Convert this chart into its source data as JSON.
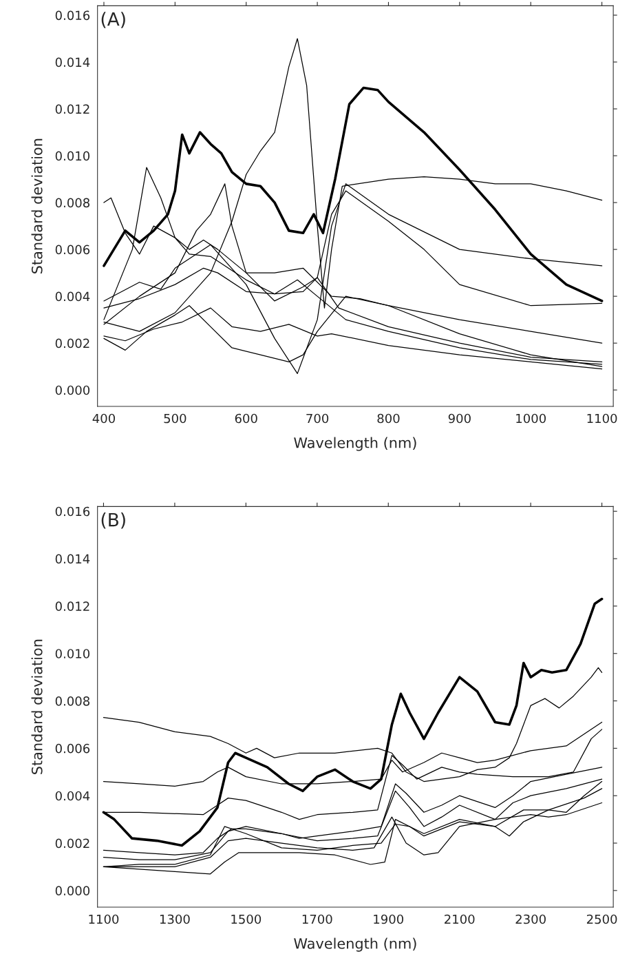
{
  "chart_data": [
    {
      "type": "line",
      "annotations": [
        "(A)"
      ],
      "xlabel": "Wavelength (nm)",
      "ylabel": "Standard deviation",
      "xlim": [
        391,
        1116
      ],
      "ylim": [
        -0.0007,
        0.0164
      ],
      "xticks": [
        400,
        500,
        600,
        700,
        800,
        900,
        1000,
        1100
      ],
      "yticks": [
        {
          "value": 0,
          "label": "0.000"
        },
        {
          "value": 0.002,
          "label": "0.002"
        },
        {
          "value": 0.004,
          "label": "0.004"
        },
        {
          "value": 0.006,
          "label": "0.006"
        },
        {
          "value": 0.008,
          "label": "0.008"
        },
        {
          "value": 0.01,
          "label": "0.010"
        },
        {
          "value": 0.012,
          "label": "0.012"
        },
        {
          "value": 0.014,
          "label": "0.014"
        },
        {
          "value": 0.016,
          "label": "0.016"
        }
      ],
      "grid": false,
      "series": [
        {
          "color": "#000000",
          "x": [
            400,
            410,
            430,
            450,
            470,
            490,
            500,
            510,
            520,
            535,
            550,
            565,
            580,
            600,
            620,
            640,
            660,
            680,
            695,
            708,
            725,
            745,
            765,
            785,
            800,
            850,
            900,
            950,
            1000,
            1050,
            1100
          ],
          "values": [
            0.0053,
            0.0058,
            0.0068,
            0.0063,
            0.0068,
            0.0075,
            0.0085,
            0.0109,
            0.0101,
            0.011,
            0.0105,
            0.0101,
            0.0093,
            0.0088,
            0.0087,
            0.008,
            0.0068,
            0.0067,
            0.0075,
            0.0067,
            0.009,
            0.0122,
            0.0129,
            0.0128,
            0.0123,
            0.011,
            0.0094,
            0.0077,
            0.0058,
            0.0045,
            0.0038
          ]
        },
        {
          "color": "#000000",
          "x": [
            400,
            450,
            500,
            550,
            580,
            600,
            620,
            640,
            660,
            672,
            685,
            700,
            710,
            720,
            735,
            800,
            850,
            900,
            950,
            1000,
            1050,
            1100
          ],
          "values": [
            0.0029,
            0.0025,
            0.0033,
            0.005,
            0.0072,
            0.0092,
            0.0102,
            0.011,
            0.0138,
            0.015,
            0.013,
            0.007,
            0.0035,
            0.006,
            0.0087,
            0.009,
            0.0091,
            0.009,
            0.0088,
            0.0088,
            0.0085,
            0.0081
          ]
        },
        {
          "color": "#000000",
          "x": [
            400,
            450,
            480,
            500,
            550,
            600,
            640,
            672,
            700,
            720,
            740,
            800,
            900,
            1000,
            1100
          ],
          "values": [
            0.0038,
            0.0046,
            0.0043,
            0.0052,
            0.0062,
            0.0045,
            0.0022,
            0.0007,
            0.003,
            0.007,
            0.0088,
            0.0075,
            0.006,
            0.0056,
            0.0053
          ]
        },
        {
          "color": "#000000",
          "x": [
            400,
            410,
            430,
            450,
            470,
            500,
            520,
            550,
            600,
            640,
            680,
            700,
            720,
            740,
            800,
            850,
            900,
            1000,
            1100
          ],
          "values": [
            0.008,
            0.0082,
            0.0067,
            0.0058,
            0.007,
            0.0065,
            0.0058,
            0.0057,
            0.0047,
            0.0041,
            0.0042,
            0.0048,
            0.0075,
            0.0085,
            0.0072,
            0.006,
            0.0045,
            0.0036,
            0.0037
          ]
        },
        {
          "color": "#000000",
          "x": [
            400,
            440,
            460,
            480,
            500,
            520,
            540,
            560,
            600,
            640,
            680,
            720,
            760,
            800,
            900,
            1000,
            1100
          ],
          "values": [
            0.003,
            0.006,
            0.0095,
            0.0082,
            0.0065,
            0.006,
            0.0064,
            0.006,
            0.005,
            0.005,
            0.0052,
            0.004,
            0.0039,
            0.0036,
            0.003,
            0.0025,
            0.002
          ]
        },
        {
          "color": "#000000",
          "x": [
            400,
            450,
            500,
            530,
            550,
            570,
            580,
            600,
            640,
            680,
            700,
            730,
            800,
            900,
            1000,
            1100
          ],
          "values": [
            0.0028,
            0.004,
            0.005,
            0.0068,
            0.0075,
            0.0088,
            0.007,
            0.005,
            0.0038,
            0.0044,
            0.0048,
            0.0035,
            0.0027,
            0.002,
            0.0014,
            0.0012
          ]
        },
        {
          "color": "#000000",
          "x": [
            400,
            430,
            460,
            500,
            520,
            550,
            580,
            620,
            660,
            680,
            700,
            740,
            800,
            900,
            1000,
            1100
          ],
          "values": [
            0.0022,
            0.0017,
            0.0025,
            0.0032,
            0.0036,
            0.0027,
            0.0018,
            0.0015,
            0.0012,
            0.0015,
            0.0025,
            0.004,
            0.0036,
            0.0024,
            0.0015,
            0.001
          ]
        },
        {
          "color": "#000000",
          "x": [
            400,
            430,
            470,
            510,
            550,
            580,
            620,
            660,
            700,
            720,
            800,
            900,
            1000,
            1100
          ],
          "values": [
            0.0023,
            0.0021,
            0.0026,
            0.0029,
            0.0035,
            0.0027,
            0.0025,
            0.0028,
            0.0023,
            0.0024,
            0.0019,
            0.0015,
            0.0012,
            0.0009
          ]
        },
        {
          "color": "#000000",
          "x": [
            400,
            450,
            500,
            540,
            560,
            600,
            640,
            672,
            700,
            740,
            800,
            900,
            1000,
            1100
          ],
          "values": [
            0.0035,
            0.0039,
            0.0045,
            0.0052,
            0.005,
            0.0042,
            0.0041,
            0.0047,
            0.004,
            0.003,
            0.0025,
            0.0018,
            0.0013,
            0.0011
          ]
        }
      ]
    },
    {
      "type": "line",
      "annotations": [
        "(B)"
      ],
      "xlabel": "Wavelength (nm)",
      "ylabel": "Standard deviation",
      "xlim": [
        1083,
        2532
      ],
      "ylim": [
        -0.0007,
        0.0162
      ],
      "xticks": [
        1100,
        1300,
        1500,
        1700,
        1900,
        2100,
        2300,
        2500
      ],
      "yticks": [
        {
          "value": 0,
          "label": "0.000"
        },
        {
          "value": 0.002,
          "label": "0.002"
        },
        {
          "value": 0.004,
          "label": "0.004"
        },
        {
          "value": 0.006,
          "label": "0.006"
        },
        {
          "value": 0.008,
          "label": "0.008"
        },
        {
          "value": 0.01,
          "label": "0.010"
        },
        {
          "value": 0.012,
          "label": "0.012"
        },
        {
          "value": 0.014,
          "label": "0.014"
        },
        {
          "value": 0.016,
          "label": "0.016"
        }
      ],
      "grid": false,
      "series": [
        {
          "color": "#000000",
          "x": [
            1100,
            1130,
            1180,
            1250,
            1320,
            1370,
            1420,
            1450,
            1470,
            1500,
            1560,
            1620,
            1660,
            1700,
            1750,
            1800,
            1850,
            1880,
            1910,
            1935,
            1960,
            2000,
            2040,
            2100,
            2150,
            2200,
            2240,
            2260,
            2280,
            2300,
            2330,
            2360,
            2400,
            2440,
            2480,
            2500
          ],
          "values": [
            0.0033,
            0.003,
            0.0022,
            0.0021,
            0.0019,
            0.0025,
            0.0035,
            0.0054,
            0.0058,
            0.0056,
            0.0052,
            0.0045,
            0.0042,
            0.0048,
            0.0051,
            0.0046,
            0.0043,
            0.0047,
            0.007,
            0.0083,
            0.0075,
            0.0064,
            0.0075,
            0.009,
            0.0084,
            0.0071,
            0.007,
            0.0078,
            0.0096,
            0.009,
            0.0093,
            0.0092,
            0.0093,
            0.0104,
            0.0121,
            0.0123
          ]
        },
        {
          "color": "#000000",
          "x": [
            1100,
            1200,
            1300,
            1400,
            1450,
            1500,
            1530,
            1580,
            1650,
            1750,
            1870,
            1910,
            1950,
            2000,
            2050,
            2100,
            2150,
            2200,
            2240,
            2260,
            2280,
            2300,
            2340,
            2380,
            2420,
            2470,
            2490,
            2500
          ],
          "values": [
            0.0073,
            0.0071,
            0.0067,
            0.0065,
            0.0062,
            0.0058,
            0.006,
            0.0056,
            0.0058,
            0.0058,
            0.006,
            0.0058,
            0.005,
            0.0046,
            0.0047,
            0.0048,
            0.0051,
            0.0052,
            0.0056,
            0.0062,
            0.007,
            0.0078,
            0.0081,
            0.0077,
            0.0082,
            0.009,
            0.0094,
            0.0092
          ]
        },
        {
          "color": "#000000",
          "x": [
            1100,
            1200,
            1300,
            1380,
            1420,
            1450,
            1500,
            1600,
            1700,
            1800,
            1880,
            1910,
            1940,
            2000,
            2050,
            2100,
            2150,
            2200,
            2300,
            2400,
            2450,
            2500
          ],
          "values": [
            0.0046,
            0.0045,
            0.0044,
            0.0046,
            0.005,
            0.0052,
            0.0048,
            0.0045,
            0.0045,
            0.0046,
            0.0047,
            0.0055,
            0.005,
            0.0054,
            0.0058,
            0.0056,
            0.0054,
            0.0055,
            0.0059,
            0.0061,
            0.0066,
            0.0071
          ]
        },
        {
          "color": "#000000",
          "x": [
            1100,
            1200,
            1380,
            1420,
            1450,
            1500,
            1600,
            1650,
            1700,
            1800,
            1870,
            1910,
            1940,
            1980,
            2050,
            2100,
            2150,
            2250,
            2350,
            2420,
            2470,
            2500
          ],
          "values": [
            0.0033,
            0.0033,
            0.0032,
            0.0036,
            0.0039,
            0.0038,
            0.0033,
            0.003,
            0.0032,
            0.0033,
            0.0034,
            0.0057,
            0.0053,
            0.0047,
            0.0052,
            0.005,
            0.0049,
            0.0048,
            0.0048,
            0.005,
            0.0064,
            0.0068
          ]
        },
        {
          "color": "#000000",
          "x": [
            1100,
            1200,
            1300,
            1380,
            1420,
            1460,
            1500,
            1600,
            1650,
            1700,
            1800,
            1880,
            1920,
            1950,
            2000,
            2050,
            2100,
            2200,
            2250,
            2300,
            2400,
            2500
          ],
          "values": [
            0.0017,
            0.0016,
            0.0015,
            0.0016,
            0.0022,
            0.0026,
            0.0026,
            0.0024,
            0.0022,
            0.0023,
            0.0025,
            0.0027,
            0.0045,
            0.0041,
            0.0033,
            0.0036,
            0.004,
            0.0035,
            0.004,
            0.0046,
            0.0049,
            0.0052
          ]
        },
        {
          "color": "#000000",
          "x": [
            1100,
            1200,
            1300,
            1400,
            1450,
            1500,
            1600,
            1700,
            1800,
            1870,
            1920,
            1960,
            2000,
            2050,
            2100,
            2200,
            2250,
            2300,
            2400,
            2500
          ],
          "values": [
            0.0014,
            0.0013,
            0.0013,
            0.0016,
            0.0025,
            0.0027,
            0.0024,
            0.0021,
            0.0022,
            0.0023,
            0.0042,
            0.0035,
            0.0027,
            0.0031,
            0.0036,
            0.003,
            0.0037,
            0.004,
            0.0043,
            0.0047
          ]
        },
        {
          "color": "#000000",
          "x": [
            1100,
            1200,
            1300,
            1400,
            1440,
            1500,
            1600,
            1700,
            1800,
            1880,
            1920,
            1960,
            2000,
            2100,
            2200,
            2280,
            2350,
            2400,
            2450,
            2500
          ],
          "values": [
            0.001,
            0.0011,
            0.0011,
            0.0015,
            0.0027,
            0.0024,
            0.0018,
            0.0017,
            0.0019,
            0.002,
            0.0028,
            0.0027,
            0.0023,
            0.0029,
            0.0027,
            0.0034,
            0.0034,
            0.0033,
            0.004,
            0.0046
          ]
        },
        {
          "color": "#000000",
          "x": [
            1100,
            1200,
            1300,
            1400,
            1450,
            1500,
            1600,
            1700,
            1800,
            1860,
            1910,
            1950,
            2000,
            2040,
            2100,
            2200,
            2300,
            2350,
            2400,
            2500
          ],
          "values": [
            0.001,
            0.001,
            0.001,
            0.0014,
            0.0021,
            0.0022,
            0.002,
            0.0018,
            0.0017,
            0.0018,
            0.0031,
            0.002,
            0.0015,
            0.0016,
            0.0027,
            0.003,
            0.0032,
            0.0031,
            0.0032,
            0.0037
          ]
        },
        {
          "color": "#000000",
          "x": [
            1100,
            1200,
            1300,
            1400,
            1440,
            1480,
            1550,
            1650,
            1750,
            1850,
            1890,
            1920,
            1960,
            2000,
            2100,
            2200,
            2240,
            2280,
            2350,
            2450,
            2500
          ],
          "values": [
            0.001,
            0.0009,
            0.0008,
            0.0007,
            0.0012,
            0.0016,
            0.0016,
            0.0016,
            0.0015,
            0.0011,
            0.0012,
            0.003,
            0.0027,
            0.0024,
            0.003,
            0.0027,
            0.0023,
            0.0029,
            0.0034,
            0.0039,
            0.0043
          ]
        }
      ]
    }
  ]
}
